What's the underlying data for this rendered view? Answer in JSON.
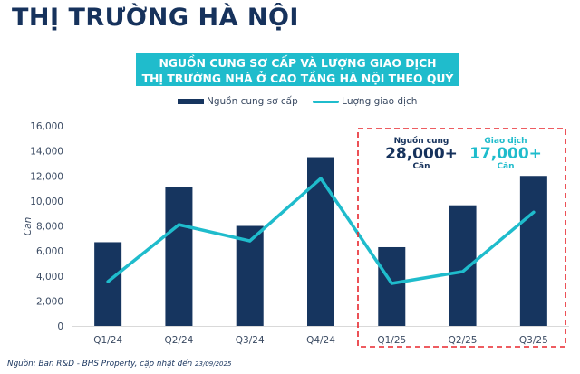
{
  "page": {
    "title": "THỊ TRƯỜNG HÀ NỘI",
    "chart_title_line1": "NGUỒN CUNG SƠ CẤP VÀ LƯỢNG GIAO DỊCH",
    "chart_title_line2": "THỊ TRƯỜNG NHÀ Ở CAO TẦNG HÀ NỘI THEO QUÝ",
    "footnote_main": "Nguồn: Ban R&D - BHS Property, cập nhật đến ",
    "footnote_date": "23/09/2025"
  },
  "legend": {
    "supply_label": "Nguồn cung sơ cấp",
    "transactions_label": "Lượng giao dịch"
  },
  "annotation": {
    "supply_label": "Nguồn cung",
    "supply_value": "28,000+",
    "supply_unit": "Căn",
    "transactions_label": "Giao dịch",
    "transactions_value": "17,000+",
    "transactions_unit": "Căn"
  },
  "colors": {
    "navy": "#16355f",
    "teal": "#1fbccc",
    "highlight_dash": "#e8262d",
    "axis_text": "#3a4a62"
  },
  "chart_data": {
    "type": "bar",
    "title": "NGUỒN CUNG SƠ CẤP VÀ LƯỢNG GIAO DỊCH THỊ TRƯỜNG NHÀ Ở CAO TẦNG HÀ NỘI THEO QUÝ",
    "xlabel": "",
    "ylabel": "Căn",
    "categories": [
      "Q1/24",
      "Q2/24",
      "Q3/24",
      "Q4/24",
      "Q1/25",
      "Q2/25",
      "Q3/25"
    ],
    "series": [
      {
        "name": "Nguồn cung sơ cấp",
        "type": "bar",
        "color": "#16355f",
        "values": [
          6700,
          11100,
          8000,
          13500,
          6300,
          9650,
          12000
        ]
      },
      {
        "name": "Lượng giao dịch",
        "type": "line",
        "color": "#1fbccc",
        "values": [
          3550,
          8100,
          6800,
          11800,
          3400,
          4350,
          9100
        ]
      }
    ],
    "ylim": [
      0,
      16000
    ],
    "yticks": [
      0,
      2000,
      4000,
      6000,
      8000,
      10000,
      12000,
      14000,
      16000
    ],
    "ytick_labels": [
      "0",
      "2,000",
      "4,000",
      "6,000",
      "8,000",
      "10,000",
      "12,000",
      "14,000",
      "16,000"
    ],
    "grid": false,
    "legend_position": "top",
    "highlight_box": {
      "categories": [
        "Q1/25",
        "Q2/25",
        "Q3/25"
      ],
      "style": "red dashed"
    },
    "annotations": [
      "Nguồn cung 28,000+ Căn",
      "Giao dịch 17,000+ Căn"
    ]
  }
}
